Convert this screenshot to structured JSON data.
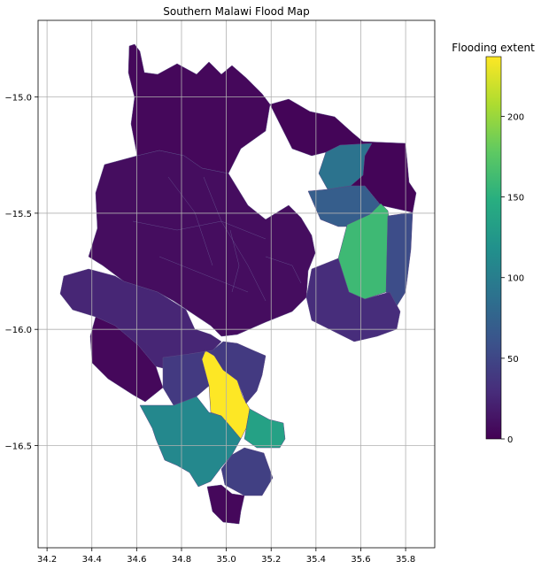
{
  "title": "Southern Malawi Flood Map",
  "colorbar": {
    "label": "Flooding extent",
    "min": 0,
    "max": 237,
    "ticks": [
      "0",
      "50",
      "100",
      "150",
      "200"
    ],
    "tick_values": [
      0,
      50,
      100,
      150,
      200
    ],
    "colormap": "viridis"
  },
  "axes": {
    "x_ticks": [
      "34.2",
      "34.4",
      "34.6",
      "34.8",
      "35.0",
      "35.2",
      "35.4",
      "35.6",
      "35.8"
    ],
    "x_values": [
      34.2,
      34.4,
      34.6,
      34.8,
      35.0,
      35.2,
      35.4,
      35.6,
      35.8
    ],
    "y_ticks": [
      "−15.0",
      "−15.5",
      "−16.0",
      "−16.5"
    ],
    "y_values": [
      -15.0,
      -15.5,
      -16.0,
      -16.5
    ],
    "xlim": [
      34.16,
      35.93
    ],
    "ylim": [
      -16.94,
      -14.67
    ],
    "grid": true
  },
  "chart_data": {
    "type": "choropleth",
    "title": "Southern Malawi Flood Map",
    "value_label": "Flooding extent",
    "regions": [
      {
        "id": "r-north",
        "value": 5
      },
      {
        "id": "r-central",
        "value": 8
      },
      {
        "id": "r-ne-dark",
        "value": 3
      },
      {
        "id": "r-east-teal",
        "value": 90
      },
      {
        "id": "r-east-blue",
        "value": 70
      },
      {
        "id": "r-east-green",
        "value": 160
      },
      {
        "id": "r-east-south",
        "value": 55
      },
      {
        "id": "r-mid-purple",
        "value": 30
      },
      {
        "id": "r-west",
        "value": 25
      },
      {
        "id": "r-sw-dark",
        "value": 5
      },
      {
        "id": "r-yellow",
        "value": 237
      },
      {
        "id": "r-green-south",
        "value": 135
      },
      {
        "id": "r-teal-south",
        "value": 110
      },
      {
        "id": "r-se-purple",
        "value": 45
      },
      {
        "id": "r-south-tip",
        "value": 5
      },
      {
        "id": "r-mid-shire",
        "value": 40
      }
    ]
  }
}
